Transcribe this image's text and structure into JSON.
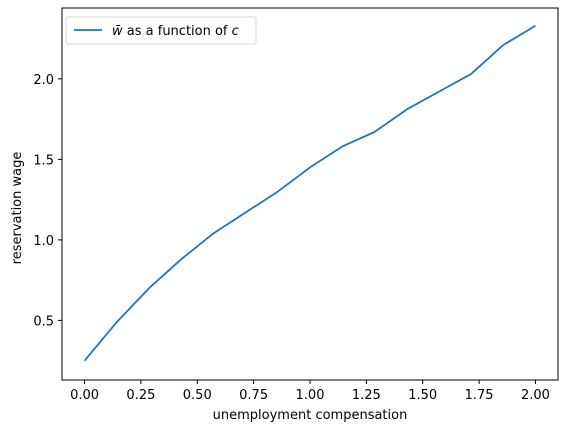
{
  "chart_data": {
    "type": "line",
    "title": "",
    "xlabel": "unemployment compensation",
    "ylabel": "reservation wage",
    "xlim": [
      -0.1,
      2.1
    ],
    "ylim": [
      0.13,
      2.44
    ],
    "xticks": [
      "0.00",
      "0.25",
      "0.50",
      "0.75",
      "1.00",
      "1.25",
      "1.50",
      "1.75",
      "2.00"
    ],
    "yticks": [
      "0.5",
      "1.0",
      "1.5",
      "2.0"
    ],
    "grid": false,
    "legend_position": "top-left",
    "series": [
      {
        "name_prefix": "w̄",
        "name_rest": " as a function of ",
        "name_var": "c",
        "color": "#1f77b4",
        "x": [
          0.0,
          0.143,
          0.286,
          0.429,
          0.571,
          0.714,
          0.857,
          1.0,
          1.143,
          1.286,
          1.429,
          1.571,
          1.714,
          1.857,
          2.0
        ],
        "y": [
          0.25,
          0.49,
          0.7,
          0.88,
          1.04,
          1.17,
          1.3,
          1.45,
          1.58,
          1.67,
          1.81,
          1.92,
          2.03,
          2.21,
          2.33
        ]
      }
    ]
  }
}
